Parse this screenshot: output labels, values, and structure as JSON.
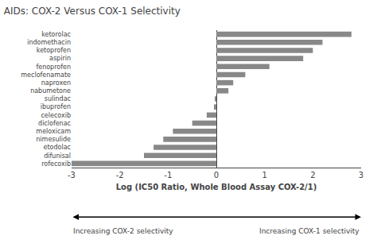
{
  "chart_data": {
    "type": "bar",
    "orientation": "horizontal",
    "title": "AIDs: COX-2 Versus COX-1 Selectivity",
    "xlabel": "Log (IC50 Ratio, Whole Blood Assay COX-2/1)",
    "categories": [
      "rofecoxib",
      "difunisal",
      "etodolac",
      "nimesulide",
      "meloxicam",
      "diclofenac",
      "celecoxib",
      "ibuprofen",
      "sulindac",
      "nabumetone",
      "naproxen",
      "meclofenamate",
      "fenoprofen",
      "aspirin",
      "ketoprofen",
      "indomethacin",
      "ketorolac"
    ],
    "values": [
      -3.0,
      -1.5,
      -1.3,
      -1.1,
      -0.9,
      -0.5,
      -0.2,
      -0.05,
      -0.02,
      0.25,
      0.35,
      0.6,
      1.1,
      1.8,
      2.0,
      2.2,
      2.8
    ],
    "color": "#888888",
    "xlim": [
      -3,
      3
    ],
    "xticks": [
      -3,
      -2,
      -1,
      0,
      1,
      2,
      3
    ],
    "grid": false,
    "annotations": [
      "Increasing COX-2 selectivity",
      "Increasing COX-1 selectivity"
    ]
  }
}
